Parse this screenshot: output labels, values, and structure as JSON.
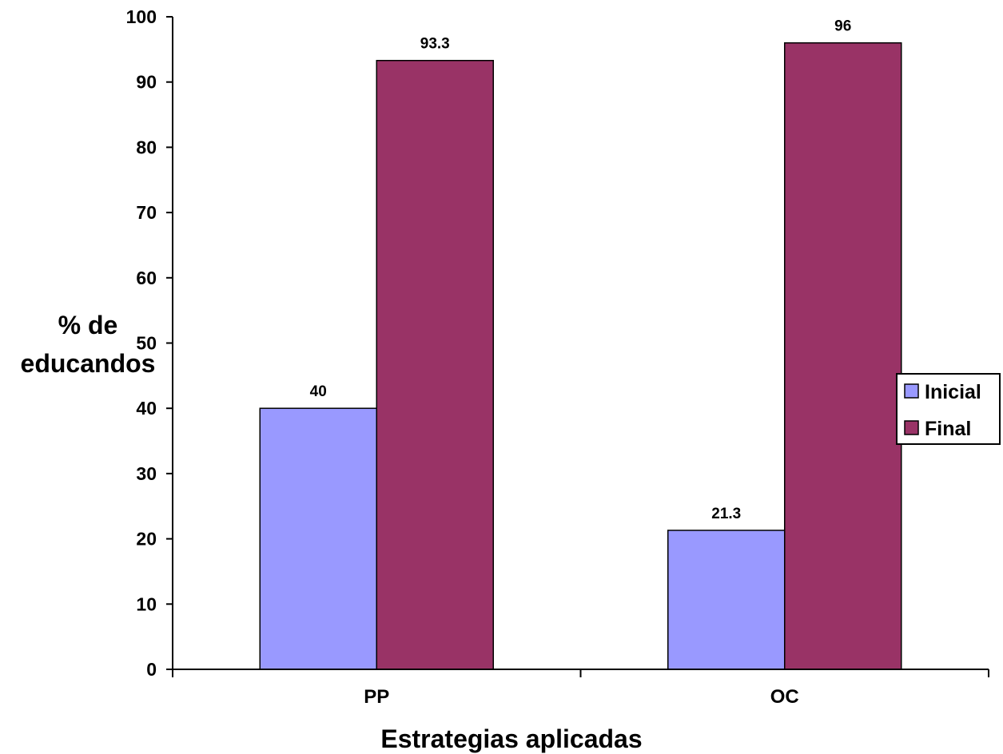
{
  "chart_data": {
    "type": "bar",
    "categories": [
      "PP",
      "OC"
    ],
    "series": [
      {
        "name": "Inicial",
        "values": [
          40,
          21.3
        ],
        "color": "#9999ff"
      },
      {
        "name": "Final",
        "values": [
          93.3,
          96
        ],
        "color": "#993366"
      }
    ],
    "data_labels": [
      [
        "40",
        "21.3"
      ],
      [
        "93.3",
        "96"
      ]
    ],
    "title": "",
    "xlabel": "Estrategias aplicadas",
    "ylabel_lines": [
      "% de",
      "educandos"
    ],
    "ylim": [
      0,
      100
    ],
    "yticks": [
      0,
      10,
      20,
      30,
      40,
      50,
      60,
      70,
      80,
      90,
      100
    ],
    "grid": false,
    "legend_position": "right"
  }
}
